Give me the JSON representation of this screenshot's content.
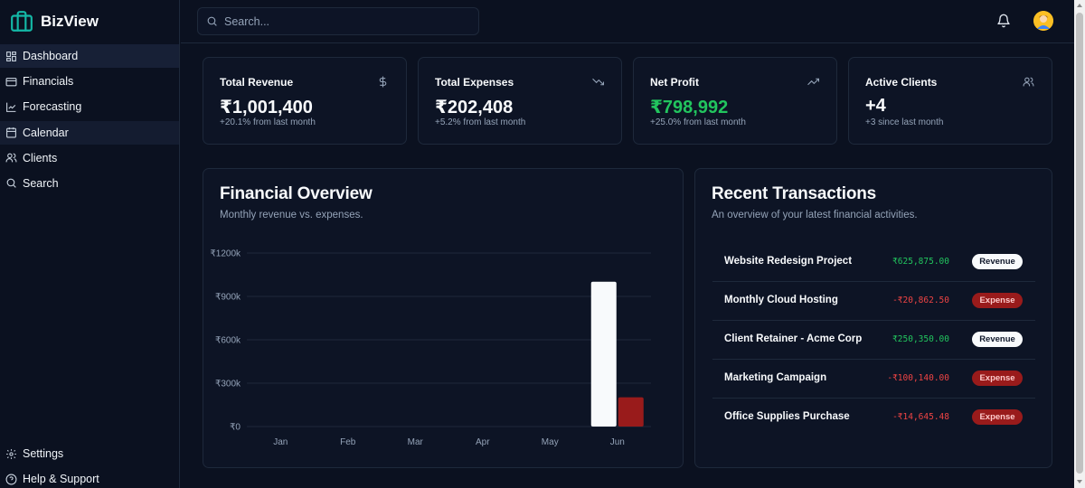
{
  "app": {
    "name": "BizView",
    "brand_color": "#14b8a6"
  },
  "sidebar": {
    "items": [
      {
        "label": "Dashboard",
        "icon": "dashboard-icon",
        "active": true
      },
      {
        "label": "Financials",
        "icon": "wallet-icon"
      },
      {
        "label": "Forecasting",
        "icon": "line-chart-icon"
      },
      {
        "label": "Calendar",
        "icon": "calendar-icon",
        "hover": true
      },
      {
        "label": "Clients",
        "icon": "users-icon"
      },
      {
        "label": "Search",
        "icon": "search-icon"
      }
    ],
    "bottom_items": [
      {
        "label": "Settings",
        "icon": "gear-icon"
      },
      {
        "label": "Help & Support",
        "icon": "help-circle-icon"
      }
    ]
  },
  "header": {
    "search_placeholder": "Search...",
    "notification_icon": "bell-icon",
    "avatar_icon": "avatar-icon"
  },
  "stats": [
    {
      "label": "Total Revenue",
      "value": "₹1,001,400",
      "sub": "+20.1% from last month",
      "icon": "dollar-icon",
      "value_color": "#f8fafc"
    },
    {
      "label": "Total Expenses",
      "value": "₹202,408",
      "sub": "+5.2% from last month",
      "icon": "trending-down-icon",
      "value_color": "#f8fafc"
    },
    {
      "label": "Net Profit",
      "value": "₹798,992",
      "sub": "+25.0% from last month",
      "icon": "trending-up-icon",
      "value_color": "#22c55e"
    },
    {
      "label": "Active Clients",
      "value": "+4",
      "sub": "+3 since last month",
      "icon": "users-icon",
      "value_color": "#f8fafc"
    }
  ],
  "overview": {
    "title": "Financial Overview",
    "subtitle": "Monthly revenue vs. expenses."
  },
  "chart_data": {
    "type": "bar",
    "categories": [
      "Jan",
      "Feb",
      "Mar",
      "Apr",
      "May",
      "Jun"
    ],
    "series": [
      {
        "values": [
          0,
          0,
          0,
          0,
          0,
          1001.4
        ],
        "color": "#f8fafc"
      },
      {
        "values": [
          0,
          0,
          0,
          0,
          0,
          202.4
        ],
        "color": "#991b1b"
      }
    ],
    "y_ticks": [
      "₹0",
      "₹300k",
      "₹600k",
      "₹900k",
      "₹1200k"
    ],
    "ylim": [
      0,
      1200
    ],
    "grid": true
  },
  "transactions": {
    "title": "Recent Transactions",
    "subtitle": "An overview of your latest financial activities.",
    "rows": [
      {
        "name": "Website Redesign Project",
        "amount": "₹625,875.00",
        "type": "Revenue"
      },
      {
        "name": "Monthly Cloud Hosting",
        "amount": "-₹20,862.50",
        "type": "Expense"
      },
      {
        "name": "Client Retainer - Acme Corp",
        "amount": "₹250,350.00",
        "type": "Revenue"
      },
      {
        "name": "Marketing Campaign",
        "amount": "-₹100,140.00",
        "type": "Expense"
      },
      {
        "name": "Office Supplies Purchase",
        "amount": "-₹14,645.48",
        "type": "Expense"
      }
    ]
  }
}
